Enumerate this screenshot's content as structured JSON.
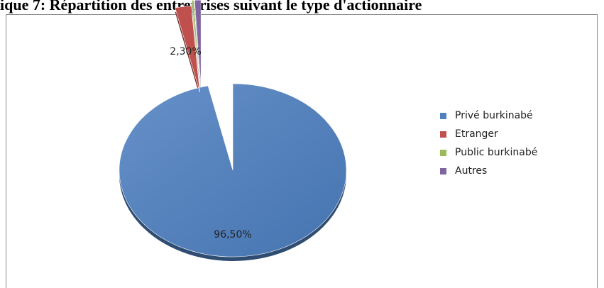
{
  "chart_data": {
    "type": "pie",
    "title": "ique 7: Répartition des entreprises suivant le type d'actionnaire",
    "categories": [
      "Privé burkinabé",
      "Etranger",
      "Public burkinabé",
      "Autres"
    ],
    "values": [
      96.5,
      2.3,
      0.3,
      0.9
    ],
    "data_labels": [
      "96,50%",
      "2,30%",
      "",
      ""
    ],
    "colors": [
      "#4f81bd",
      "#c0504d",
      "#9bbb59",
      "#8064a2"
    ],
    "exploded": true,
    "legend_position": "right"
  }
}
